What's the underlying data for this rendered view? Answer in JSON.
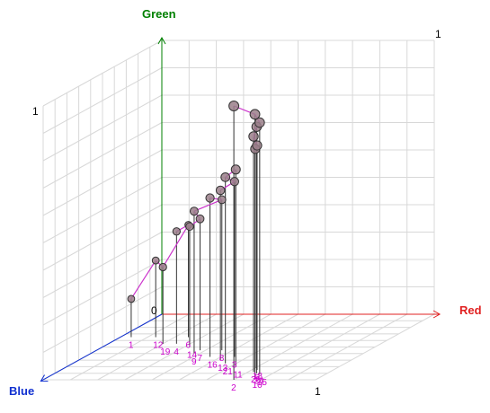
{
  "chart_data": {
    "type": "scatter3d",
    "axes": {
      "x": {
        "label": "Red",
        "color": "#e02020",
        "range": [
          0,
          1
        ],
        "tick_labels": [
          "0",
          "1"
        ]
      },
      "y": {
        "label": "Green",
        "color": "#008000",
        "range": [
          0,
          1
        ],
        "tick_labels": [
          "0",
          "1"
        ]
      },
      "z": {
        "label": "Blue",
        "color": "#1030d0",
        "range": [
          0,
          1
        ],
        "tick_labels": [
          "1"
        ]
      }
    },
    "origin_label": "0",
    "grid": true,
    "colors": {
      "line": "#cc33cc",
      "label": "#cc00cc",
      "marker_fill": "#9a7f8a",
      "stem": "#333333"
    },
    "points": [
      {
        "label": "1",
        "x": 0.04,
        "y": 0.14,
        "z": 0.35
      },
      {
        "label": "12",
        "x": 0.13,
        "y": 0.28,
        "z": 0.35
      },
      {
        "label": "19",
        "x": 0.2,
        "y": 0.28,
        "z": 0.45
      },
      {
        "label": "6",
        "x": 0.25,
        "y": 0.41,
        "z": 0.35
      },
      {
        "label": "4",
        "x": 0.25,
        "y": 0.41,
        "z": 0.45
      },
      {
        "label": "14",
        "x": 0.32,
        "y": 0.44,
        "z": 0.5
      },
      {
        "label": "7",
        "x": 0.38,
        "y": 0.48,
        "z": 0.55
      },
      {
        "label": "9",
        "x": 0.38,
        "y": 0.52,
        "z": 0.6
      },
      {
        "label": "8",
        "x": 0.46,
        "y": 0.55,
        "z": 0.55
      },
      {
        "label": "16",
        "x": 0.46,
        "y": 0.58,
        "z": 0.65
      },
      {
        "label": "13",
        "x": 0.52,
        "y": 0.62,
        "z": 0.7
      },
      {
        "label": "3",
        "x": 0.55,
        "y": 0.64,
        "z": 0.65
      },
      {
        "label": "21",
        "x": 0.56,
        "y": 0.68,
        "z": 0.75
      },
      {
        "label": "11",
        "x": 0.62,
        "y": 0.72,
        "z": 0.8
      },
      {
        "label": "18",
        "x": 0.7,
        "y": 0.8,
        "z": 0.82
      },
      {
        "label": "5",
        "x": 0.72,
        "y": 0.82,
        "z": 0.85
      },
      {
        "label": "20",
        "x": 0.72,
        "y": 0.86,
        "z": 0.88
      },
      {
        "label": "24",
        "x": 0.74,
        "y": 0.9,
        "z": 0.9
      },
      {
        "label": "15",
        "x": 0.76,
        "y": 0.92,
        "z": 0.92
      },
      {
        "label": "10",
        "x": 0.76,
        "y": 0.96,
        "z": 0.96
      },
      {
        "label": "2",
        "x": 0.7,
        "y": 1.0,
        "z": 1.0
      }
    ],
    "connections": [
      [
        0,
        1
      ],
      [
        1,
        2
      ],
      [
        2,
        3
      ],
      [
        3,
        4
      ],
      [
        5,
        6
      ],
      [
        6,
        7
      ],
      [
        7,
        8
      ],
      [
        8,
        9
      ],
      [
        10,
        11
      ],
      [
        11,
        12
      ],
      [
        12,
        13
      ],
      [
        14,
        15
      ],
      [
        15,
        16
      ],
      [
        16,
        17
      ],
      [
        18,
        19
      ],
      [
        19,
        20
      ]
    ]
  }
}
